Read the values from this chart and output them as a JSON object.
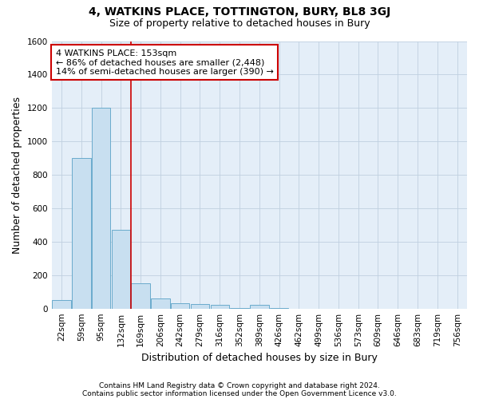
{
  "title": "4, WATKINS PLACE, TOTTINGTON, BURY, BL8 3GJ",
  "subtitle": "Size of property relative to detached houses in Bury",
  "xlabel": "Distribution of detached houses by size in Bury",
  "ylabel": "Number of detached properties",
  "footnote1": "Contains HM Land Registry data © Crown copyright and database right 2024.",
  "footnote2": "Contains public sector information licensed under the Open Government Licence v3.0.",
  "bin_labels": [
    "22sqm",
    "59sqm",
    "95sqm",
    "132sqm",
    "169sqm",
    "206sqm",
    "242sqm",
    "279sqm",
    "316sqm",
    "352sqm",
    "389sqm",
    "426sqm",
    "462sqm",
    "499sqm",
    "536sqm",
    "573sqm",
    "609sqm",
    "646sqm",
    "683sqm",
    "719sqm",
    "756sqm"
  ],
  "bar_values": [
    50,
    900,
    1200,
    470,
    150,
    60,
    30,
    25,
    20,
    3,
    20,
    3,
    0,
    0,
    0,
    0,
    0,
    0,
    0,
    0,
    0
  ],
  "bar_color": "#c8dff0",
  "bar_edgecolor": "#6aabcc",
  "annotation_line1": "4 WATKINS PLACE: 153sqm",
  "annotation_line2": "← 86% of detached houses are smaller (2,448)",
  "annotation_line3": "14% of semi-detached houses are larger (390) →",
  "annotation_box_edgecolor": "#cc0000",
  "vline_color": "#cc0000",
  "vline_pos": 3.5,
  "ylim": [
    0,
    1600
  ],
  "yticks": [
    0,
    200,
    400,
    600,
    800,
    1000,
    1200,
    1400,
    1600
  ],
  "grid_color": "#c0d0e0",
  "background_color": "#ffffff",
  "plot_bg_color": "#e4eef8",
  "title_fontsize": 10,
  "subtitle_fontsize": 9,
  "axis_label_fontsize": 9,
  "tick_fontsize": 7.5,
  "footnote_fontsize": 6.5
}
